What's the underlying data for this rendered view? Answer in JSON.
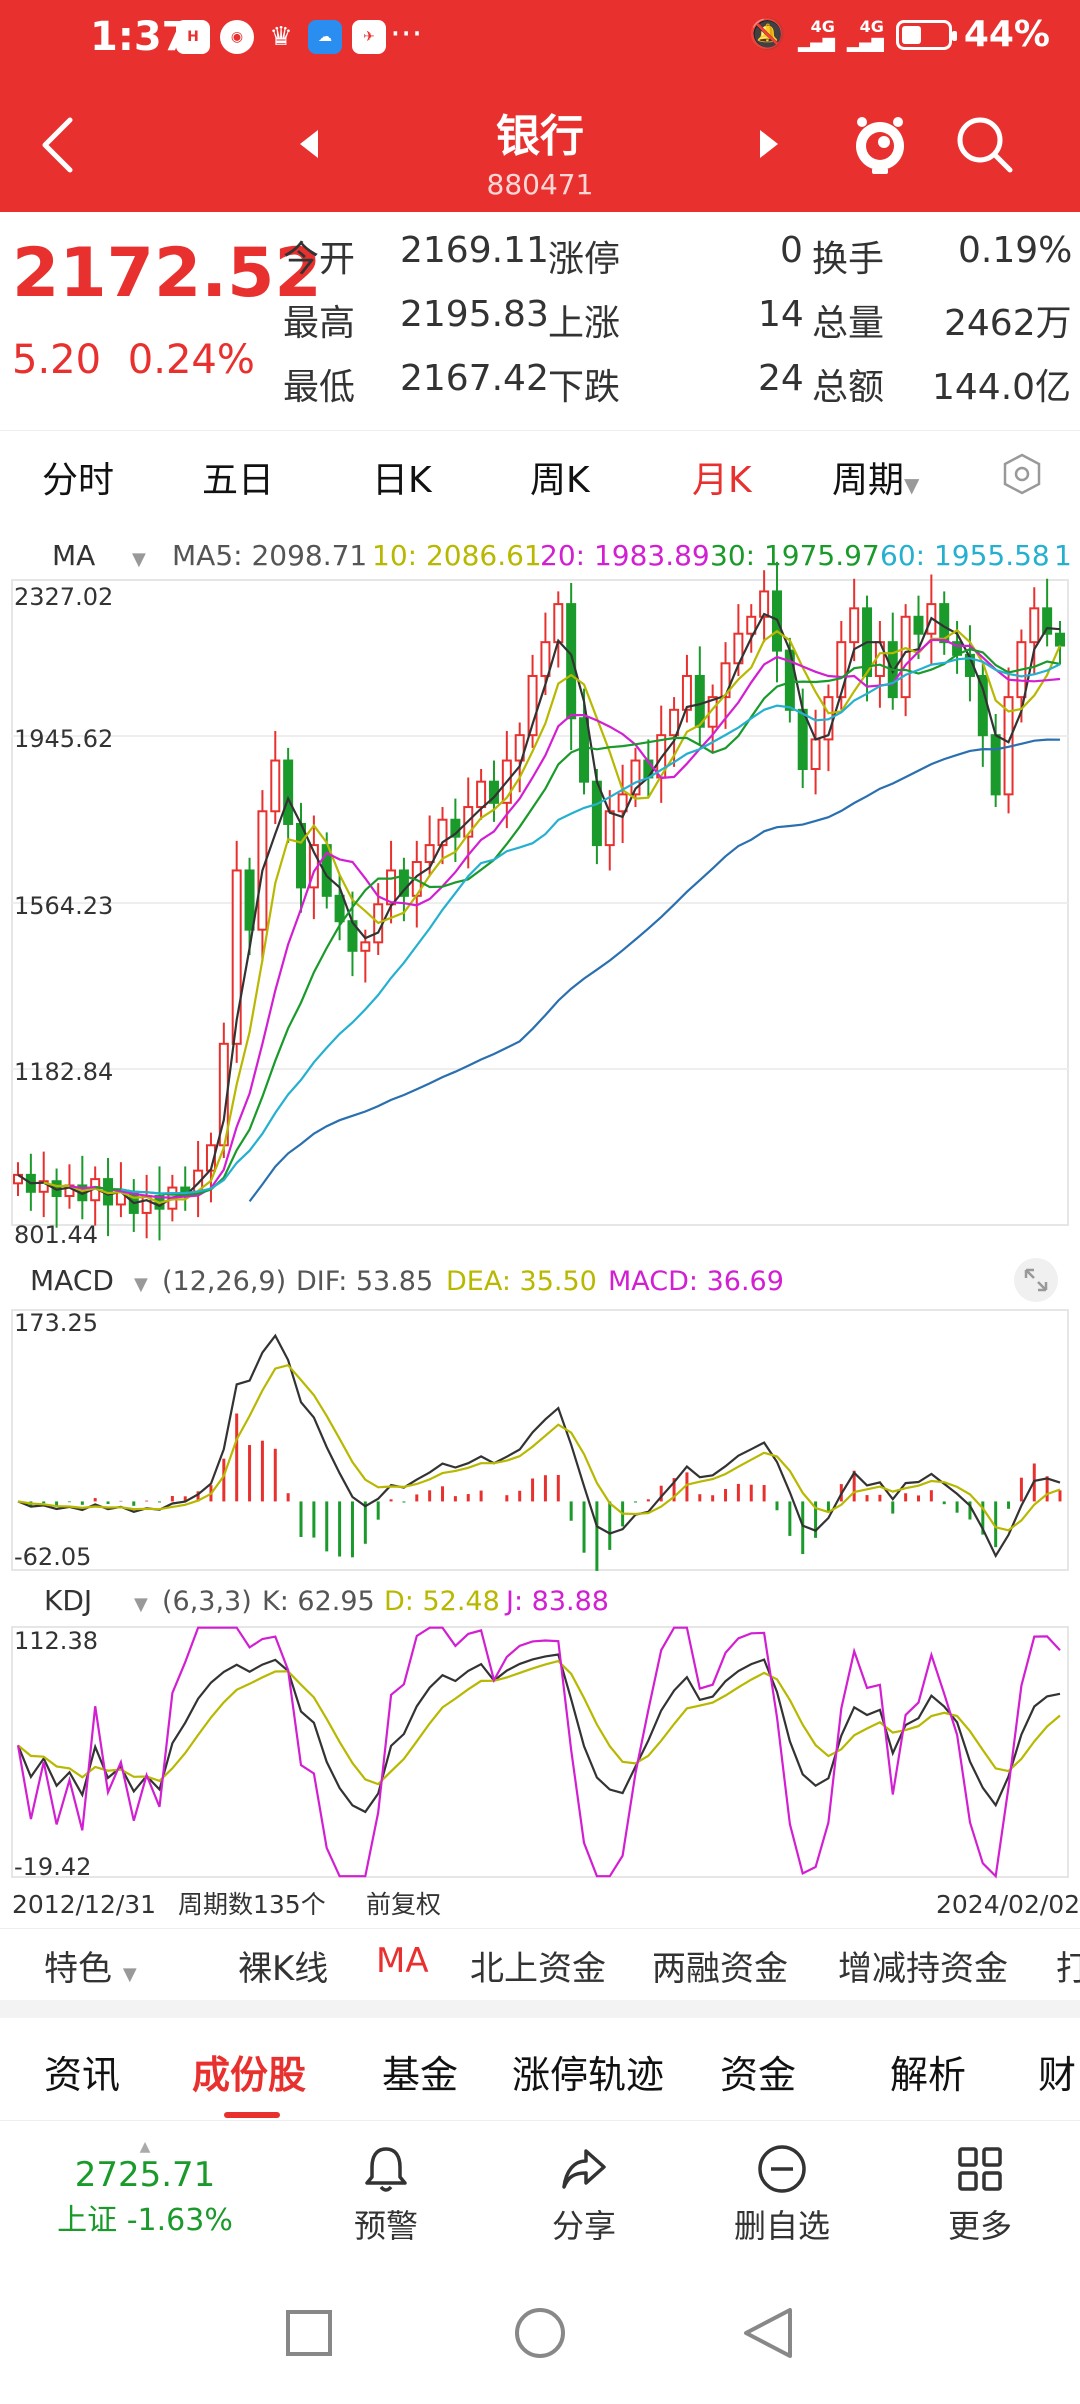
{
  "status_bar": {
    "time": "1:37",
    "battery": "44%",
    "battery_level": 0.44,
    "signal1": "4G",
    "signal2": "4G",
    "notif_icons": [
      "huawei-icon",
      "browser-icon",
      "app-icon",
      "weather-icon",
      "news-icon"
    ],
    "more": "···"
  },
  "header": {
    "title": "银行",
    "code": "880471"
  },
  "quote": {
    "price": "2172.52",
    "change": "5.20",
    "change_pct": "0.24%",
    "rows": [
      {
        "l1": "今开",
        "v1": "2169.11",
        "l2": "涨停",
        "v2": "0",
        "l3": "换手",
        "v3": "0.19%"
      },
      {
        "l1": "最高",
        "v1": "2195.83",
        "l2": "上涨",
        "v2": "14",
        "l3": "总量",
        "v3": "2462万"
      },
      {
        "l1": "最低",
        "v1": "2167.42",
        "l2": "下跌",
        "v2": "24",
        "l3": "总额",
        "v3": "144.0亿"
      }
    ]
  },
  "period_tabs": [
    "分时",
    "五日",
    "日K",
    "周K",
    "月K",
    "周期"
  ],
  "active_period": "月K",
  "chart_data": {
    "type": "candlestick",
    "ma_legend": {
      "name": "MA",
      "ma5": "MA5: 2098.71",
      "ma10": "10: 2086.61",
      "ma20": "20: 1983.89",
      "ma30": "30: 1975.97",
      "ma60": "60: 1955.58",
      "ma_extra": "1"
    },
    "price_ticks": [
      "2327.02",
      "1945.62",
      "1564.23",
      "1182.84",
      "801.44"
    ],
    "price_range": [
      801.44,
      2327.02
    ],
    "macd_legend": {
      "name": "MACD",
      "params": "(12,26,9)",
      "dif": "DIF: 53.85",
      "dea": "DEA: 35.50",
      "macd": "MACD: 36.69"
    },
    "macd_ticks": [
      "173.25",
      "-62.05"
    ],
    "kdj_legend": {
      "name": "KDJ",
      "params": "(6,3,3)",
      "k": "K: 62.95",
      "d": "D: 52.48",
      "j": "J: 83.88"
    },
    "kdj_ticks": [
      "112.38",
      "-19.42"
    ],
    "x_start": "2012/12/31",
    "x_end": "2024/02/02",
    "period_count": "周期数135个",
    "adjust": "前复权",
    "close_points": [
      920,
      880,
      905,
      870,
      895,
      860,
      910,
      850,
      880,
      830,
      870,
      840,
      890,
      880,
      930,
      990,
      1230,
      1640,
      1500,
      1780,
      1900,
      1750,
      1600,
      1700,
      1580,
      1520,
      1450,
      1470,
      1560,
      1640,
      1580,
      1660,
      1700,
      1760,
      1720,
      1790,
      1850,
      1800,
      1900,
      1960,
      2100,
      2180,
      2270,
      2000,
      1850,
      1700,
      1780,
      1820,
      1900,
      1860,
      1960,
      2020,
      2100,
      1980,
      2050,
      2130,
      2200,
      2240,
      2300,
      2160,
      2020,
      1880,
      1950,
      2050,
      2180,
      2260,
      2100,
      2180,
      2050,
      2240,
      2200,
      2270,
      2180,
      2150,
      2100,
      1960,
      1820,
      2050,
      2180,
      2260,
      2200,
      2172
    ]
  },
  "indicator_tabs": [
    "特色",
    "裸K线",
    "MA",
    "北上资金",
    "两融资金",
    "增减持资金",
    "打"
  ],
  "active_indicator": "MA",
  "content_tabs": [
    "资讯",
    "成份股",
    "基金",
    "涨停轨迹",
    "资金",
    "解析",
    "财"
  ],
  "active_content": "成份股",
  "bottom_bar": {
    "index_value": "2725.71",
    "index_name": "上证 -1.63%",
    "items": [
      "预警",
      "分享",
      "删自选",
      "更多"
    ]
  },
  "colors": {
    "up": "#e8312f",
    "down": "#1a9a2a",
    "ma5": "#333333",
    "ma10": "#b8b800",
    "ma20": "#d21fd2",
    "ma30": "#1a9a2a",
    "ma60": "#25b0d0",
    "ma120": "#2a6fb0"
  }
}
